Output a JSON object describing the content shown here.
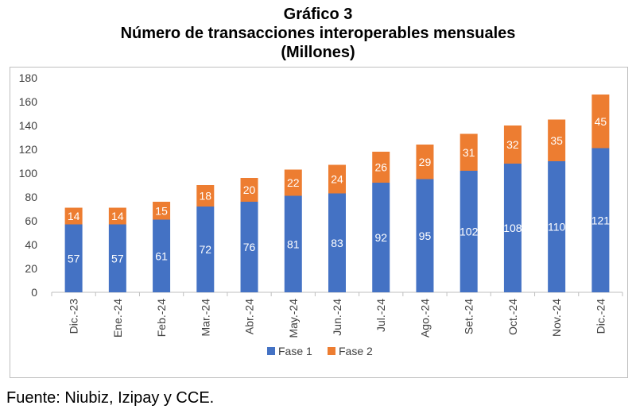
{
  "title": "Gráfico 3",
  "subtitle": "Número de transacciones interoperables mensuales",
  "unit": "(Millones)",
  "source": "Fuente: Niubiz, Izipay y CCE.",
  "colors": {
    "fase1": "#4472c4",
    "fase2": "#ed7d31",
    "grid": "#d9d9d9",
    "axis": "#bfbfbf"
  },
  "chart_data": {
    "type": "bar",
    "stacked": true,
    "categories": [
      "Dic.-23",
      "Ene.-24",
      "Feb.-24",
      "Mar.-24",
      "Abr.-24",
      "May.-24",
      "Jun.-24",
      "Jul.-24",
      "Ago.-24",
      "Set.-24",
      "Oct.-24",
      "Nov.-24",
      "Dic.-24"
    ],
    "series": [
      {
        "name": "Fase 1",
        "values": [
          57,
          57,
          61,
          72,
          76,
          81,
          83,
          92,
          95,
          102,
          108,
          110,
          121
        ]
      },
      {
        "name": "Fase 2",
        "values": [
          14,
          14,
          15,
          18,
          20,
          22,
          24,
          26,
          29,
          31,
          32,
          35,
          45
        ]
      }
    ],
    "yticks": [
      "0",
      "20",
      "40",
      "60",
      "80",
      "100",
      "120",
      "140",
      "160",
      "180"
    ],
    "ylim": [
      0,
      180
    ],
    "grid": false,
    "legend": "bottom-center"
  }
}
